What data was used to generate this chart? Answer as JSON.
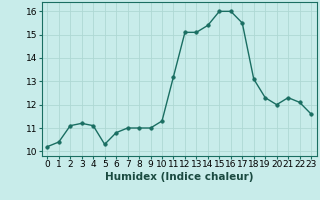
{
  "x": [
    0,
    1,
    2,
    3,
    4,
    5,
    6,
    7,
    8,
    9,
    10,
    11,
    12,
    13,
    14,
    15,
    16,
    17,
    18,
    19,
    20,
    21,
    22,
    23
  ],
  "y": [
    10.2,
    10.4,
    11.1,
    11.2,
    11.1,
    10.3,
    10.8,
    11.0,
    11.0,
    11.0,
    11.3,
    13.2,
    15.1,
    15.1,
    15.4,
    16.0,
    16.0,
    15.5,
    13.1,
    12.3,
    12.0,
    12.3,
    12.1,
    11.6
  ],
  "line_color": "#1a6e62",
  "marker_color": "#1a6e62",
  "bg_color": "#c8ecea",
  "grid_color": "#aed8d4",
  "xlabel": "Humidex (Indice chaleur)",
  "xlim": [
    -0.5,
    23.5
  ],
  "ylim": [
    9.8,
    16.4
  ],
  "yticks": [
    10,
    11,
    12,
    13,
    14,
    15,
    16
  ],
  "xticks": [
    0,
    1,
    2,
    3,
    4,
    5,
    6,
    7,
    8,
    9,
    10,
    11,
    12,
    13,
    14,
    15,
    16,
    17,
    18,
    19,
    20,
    21,
    22,
    23
  ],
  "xlabel_fontsize": 7.5,
  "tick_fontsize": 6.5,
  "linewidth": 1.0,
  "markersize": 2.5
}
